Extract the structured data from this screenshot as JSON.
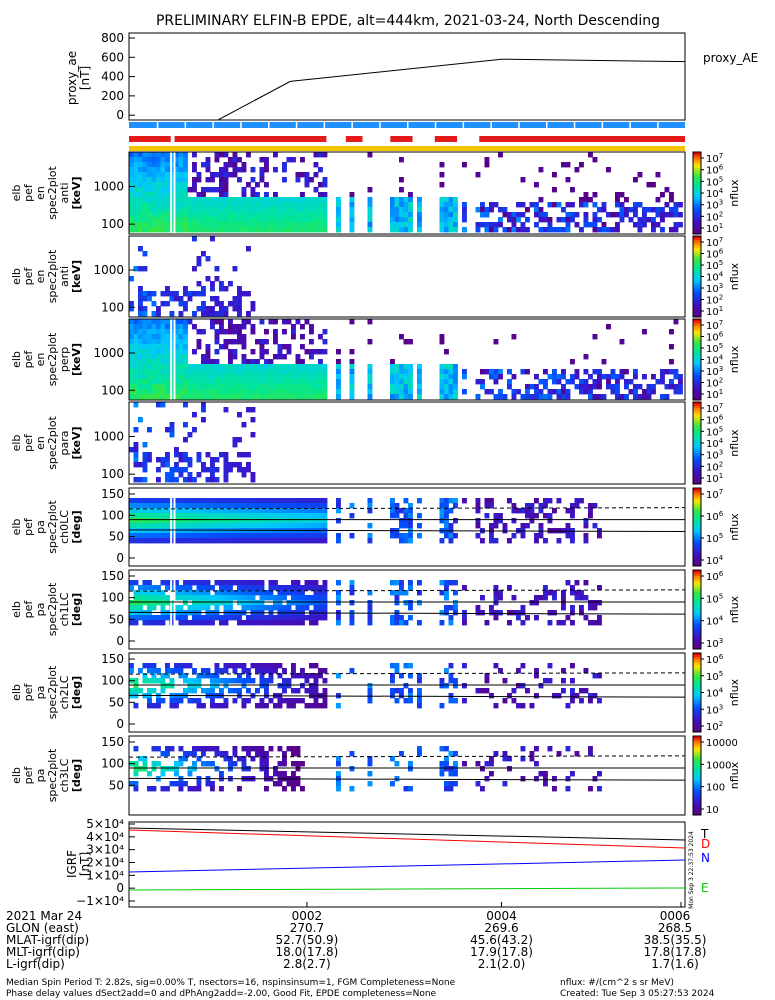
{
  "title": "PRELIMINARY ELFIN-B EPDE, alt=444km, 2021-03-24, North Descending",
  "proxy_ae": {
    "ylabel_lines": [
      "proxy_ae",
      "[nT]"
    ],
    "yticks": [
      "800",
      "600",
      "400",
      "200",
      "0"
    ],
    "legend": "proxy_AE",
    "series_points": [
      [
        0.0,
        -60
      ],
      [
        0.16,
        -60
      ],
      [
        0.29,
        350
      ],
      [
        0.67,
        580
      ],
      [
        1.0,
        555
      ]
    ]
  },
  "panels": [
    {
      "id": "en-anti",
      "ylabel_lines": [
        "elb",
        "pef",
        "en",
        "spec2plot",
        "anti",
        "[keV]"
      ],
      "yticks": [
        "1000",
        "100"
      ],
      "cb_label": "nflux",
      "cb_ticks": [
        "10^7",
        "10^6",
        "10^5",
        "10^4",
        "10^3",
        "10^2",
        "10^1"
      ]
    },
    {
      "id": "en-perp",
      "ylabel_lines": [
        "elb",
        "pef",
        "en",
        "spec2plot",
        "anti",
        "[keV]"
      ],
      "yticks": [
        "1000",
        "100"
      ],
      "cb_label": "nflux",
      "cb_ticks": [
        "10^7",
        "10^6",
        "10^5",
        "10^4",
        "10^3",
        "10^2",
        "10^1"
      ]
    },
    {
      "id": "en-omni",
      "ylabel_lines": [
        "elb",
        "pef",
        "en",
        "spec2plot",
        "perp",
        "[keV]"
      ],
      "yticks": [
        "1000",
        "100"
      ],
      "cb_label": "nflux",
      "cb_ticks": [
        "10^7",
        "10^6",
        "10^5",
        "10^4",
        "10^3",
        "10^2",
        "10^1"
      ]
    },
    {
      "id": "en-para",
      "ylabel_lines": [
        "elb",
        "pef",
        "en",
        "spec2plot",
        "para",
        "[keV]"
      ],
      "yticks": [
        "1000",
        "100"
      ],
      "cb_label": "nflux",
      "cb_ticks": [
        "10^7",
        "10^6",
        "10^5",
        "10^4",
        "10^3",
        "10^2",
        "10^1"
      ]
    },
    {
      "id": "pa-ch0",
      "ylabel_lines": [
        "elb",
        "pef",
        "pa",
        "spec2plot",
        "ch0LC",
        "[deg]"
      ],
      "yticks": [
        "150",
        "100",
        "50",
        "0"
      ],
      "cb_label": "nflux",
      "cb_ticks": [
        "10^7",
        "10^6",
        "10^5",
        "10^4"
      ]
    },
    {
      "id": "pa-ch1",
      "ylabel_lines": [
        "elb",
        "pef",
        "pa",
        "spec2plot",
        "ch1LC",
        "[deg]"
      ],
      "yticks": [
        "150",
        "100",
        "50",
        "0"
      ],
      "cb_label": "nflux",
      "cb_ticks": [
        "10^6",
        "10^5",
        "10^4",
        "10^3"
      ]
    },
    {
      "id": "pa-ch2",
      "ylabel_lines": [
        "elb",
        "pef",
        "pa",
        "spec2plot",
        "ch2LC",
        "[deg]"
      ],
      "yticks": [
        "150",
        "100",
        "50",
        "0"
      ],
      "cb_label": "nflux",
      "cb_ticks": [
        "10^6",
        "10^5",
        "10^4",
        "10^3",
        "10^2"
      ]
    },
    {
      "id": "pa-ch3",
      "ylabel_lines": [
        "elb",
        "pef",
        "pa",
        "spec2plot",
        "ch3LC",
        "[deg]"
      ],
      "yticks": [
        "150",
        "100",
        "50"
      ],
      "cb_label": "nflux",
      "cb_ticks": [
        "10000",
        "1000",
        "100",
        "10"
      ]
    }
  ],
  "igrf": {
    "ylabel_lines": [
      "IGRF",
      "[nT]"
    ],
    "yticks": [
      "5×10⁴",
      "4×10⁴",
      "3×10⁴",
      "2×10⁴",
      "1×10⁴",
      "0",
      "−1×10⁴"
    ],
    "labels": [
      {
        "text": "T",
        "color": "#000000"
      },
      {
        "text": "D",
        "color": "#ff0000"
      },
      {
        "text": "N",
        "color": "#0000ff"
      },
      {
        "text": "E",
        "color": "#00cc00"
      }
    ],
    "stamp": "Mon Sep  3 22:37:53 2024"
  },
  "time_rows": {
    "labels": [
      "2021 Mar 24",
      "GLON (east)",
      "MLAT-igrf(dip)",
      "MLT-igrf(dip)",
      "L-igrf(dip)"
    ],
    "ticks": [
      {
        "x": "0002",
        "values": [
          "270.7",
          "52.7(50.9)",
          "18.0(17.8)",
          "2.8(2.7)"
        ]
      },
      {
        "x": "0004",
        "values": [
          "269.6",
          "45.6(43.2)",
          "17.9(17.8)",
          "2.1(2.0)"
        ]
      },
      {
        "x": "0006",
        "values": [
          "268.5",
          "38.5(35.5)",
          "17.8(17.8)",
          "1.7(1.6)"
        ]
      }
    ]
  },
  "footer": {
    "left1": "Median Spin Period T: 2.82s, sig=0.00% T, nsectors=16, nspinsinsum=1, FGM Completeness=None",
    "left2": "Phase delay values dSect2add=0 and dPhAng2add=-2.00, Good Fit, EPDE completeness=None",
    "right1": "nflux: #/(cm^2 s sr MeV)",
    "right2": "Created: Tue Sep  3 05:27:53 2024"
  },
  "chart_data": {
    "type": "line",
    "title": "PRELIMINARY ELFIN-B EPDE, alt=444km, 2021-03-24, North Descending",
    "x": [
      "0002",
      "0004",
      "0006"
    ],
    "series": [
      {
        "name": "proxy_AE",
        "values": [
          350,
          540,
          555
        ]
      }
    ],
    "ylabel": "proxy_ae [nT]",
    "ylim": [
      -50,
      850
    ]
  }
}
